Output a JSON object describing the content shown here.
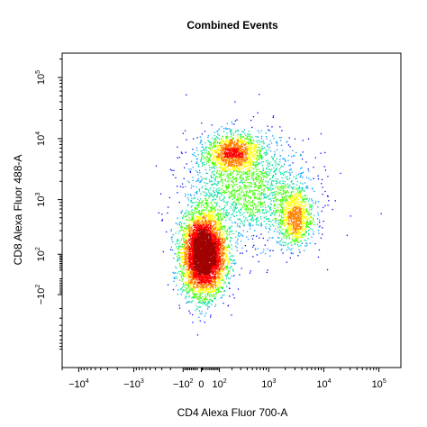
{
  "chart_data": {
    "type": "scatter",
    "title": "Combined Events",
    "xlabel": "CD4 Alexa Fluor 700-A",
    "ylabel": "CD8 Alexa Fluor 488-A",
    "x_scale": "biexponential",
    "y_scale": "biexponential",
    "xlim": [
      -20000,
      250000
    ],
    "ylim": [
      -2000,
      250000
    ],
    "grid": false,
    "x_ticks": [
      {
        "value": -10000,
        "base": "−10",
        "exp": "4"
      },
      {
        "value": -1000,
        "base": "−10",
        "exp": "3"
      },
      {
        "value": -100,
        "base": "−10",
        "exp": "2"
      },
      {
        "value": 0,
        "base": "0",
        "exp": ""
      },
      {
        "value": 100,
        "base": "10",
        "exp": "2"
      },
      {
        "value": 1000,
        "base": "10",
        "exp": "3"
      },
      {
        "value": 10000,
        "base": "10",
        "exp": "4"
      },
      {
        "value": 100000,
        "base": "10",
        "exp": "5"
      }
    ],
    "y_ticks": [
      {
        "value": -100,
        "base": "−10",
        "exp": "2"
      },
      {
        "value": 100,
        "base": "10",
        "exp": "2"
      },
      {
        "value": 1000,
        "base": "10",
        "exp": "3"
      },
      {
        "value": 10000,
        "base": "10",
        "exp": "4"
      },
      {
        "value": 100000,
        "base": "10",
        "exp": "5"
      }
    ],
    "colormap": [
      "#0000ff",
      "#00a0ff",
      "#00e0a0",
      "#40ff00",
      "#ffff00",
      "#ff8000",
      "#ff0000",
      "#a00000"
    ],
    "populations": [
      {
        "x_center": 10,
        "y_center": 100,
        "relative_density": 1.0
      },
      {
        "x_center": 200,
        "y_center": 6000,
        "relative_density": 0.25
      },
      {
        "x_center": 3000,
        "y_center": 500,
        "relative_density": 0.2
      }
    ]
  }
}
